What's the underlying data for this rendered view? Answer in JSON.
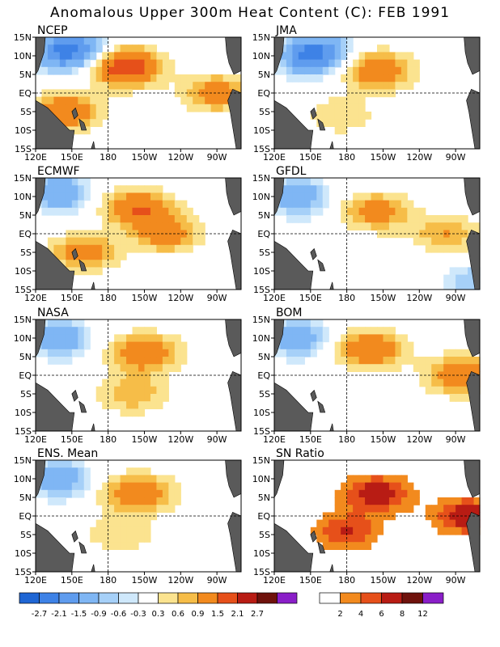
{
  "title": "Anomalous Upper 300m Heat Content (C): FEB 1991",
  "colors": {
    "land": "#5a5a5a",
    "anomaly": [
      "#1f66d4",
      "#3e82e6",
      "#5f9cee",
      "#7fb6f4",
      "#a6d0f8",
      "#cfe8fb",
      "#ffffff",
      "#fbe38f",
      "#f6bd48",
      "#f28a1e",
      "#e6501a",
      "#b81c14",
      "#6f120c",
      "#8a1ec8"
    ],
    "ratio": [
      "#ffffff",
      "#f28a1e",
      "#e6501a",
      "#b81c14",
      "#6f120c",
      "#8a1ec8"
    ]
  },
  "chart_data": [
    {
      "type": "heatmap",
      "title": "NCEP",
      "xticks": [
        "120E",
        "150E",
        "180",
        "150W",
        "120W",
        "90W"
      ],
      "yticks": [
        "15N",
        "10N",
        "5N",
        "EQ",
        "5S",
        "10S",
        "15S"
      ],
      "xlim": [
        120,
        290
      ],
      "ylim": [
        -15,
        15
      ],
      "warm": [
        {
          "lon": 195,
          "lat": 7,
          "value": 2.1
        },
        {
          "lon": 145,
          "lat": -5,
          "value": 1.5
        },
        {
          "lon": 270,
          "lat": 0,
          "value": 1.2
        }
      ],
      "cool": [
        {
          "lon": 140,
          "lat": 11,
          "value": -1.8
        },
        {
          "lon": 160,
          "lat": 12,
          "value": -1.2
        }
      ]
    },
    {
      "type": "heatmap",
      "title": "JMA",
      "xticks": [
        "120E",
        "150E",
        "180",
        "150W",
        "120W",
        "90W"
      ],
      "yticks": [
        "15N",
        "10N",
        "5N",
        "EQ",
        "5S",
        "10S",
        "15S"
      ],
      "xlim": [
        120,
        290
      ],
      "ylim": [
        -15,
        15
      ],
      "warm": [
        {
          "lon": 205,
          "lat": 6,
          "value": 1.5
        },
        {
          "lon": 175,
          "lat": -6,
          "value": 0.6
        }
      ],
      "cool": [
        {
          "lon": 145,
          "lat": 10,
          "value": -1.8
        },
        {
          "lon": 165,
          "lat": 11,
          "value": -1.2
        }
      ]
    },
    {
      "type": "heatmap",
      "title": "ECMWF",
      "xticks": [
        "120E",
        "150E",
        "180",
        "150W",
        "120W",
        "90W"
      ],
      "yticks": [
        "15N",
        "10N",
        "5N",
        "EQ",
        "5S",
        "10S",
        "15S"
      ],
      "xlim": [
        120,
        290
      ],
      "ylim": [
        -15,
        15
      ],
      "warm": [
        {
          "lon": 205,
          "lat": 7,
          "value": 1.5
        },
        {
          "lon": 228,
          "lat": 0,
          "value": 1.2
        },
        {
          "lon": 160,
          "lat": -5,
          "value": 1.2
        }
      ],
      "cool": [
        {
          "lon": 140,
          "lat": 11,
          "value": -1.5
        }
      ]
    },
    {
      "type": "heatmap",
      "title": "GFDL",
      "xticks": [
        "120E",
        "150E",
        "180",
        "150W",
        "120W",
        "90W"
      ],
      "yticks": [
        "15N",
        "10N",
        "5N",
        "EQ",
        "5S",
        "10S",
        "15S"
      ],
      "xlim": [
        120,
        290
      ],
      "ylim": [
        -15,
        15
      ],
      "warm": [
        {
          "lon": 205,
          "lat": 6,
          "value": 1.2
        },
        {
          "lon": 262,
          "lat": 0,
          "value": 0.9
        }
      ],
      "cool": [
        {
          "lon": 140,
          "lat": 10,
          "value": -1.5
        },
        {
          "lon": 285,
          "lat": -13,
          "value": -0.9
        }
      ]
    },
    {
      "type": "heatmap",
      "title": "NASA",
      "xticks": [
        "120E",
        "150E",
        "180",
        "150W",
        "120W",
        "90W"
      ],
      "yticks": [
        "15N",
        "10N",
        "5N",
        "EQ",
        "5S",
        "10S",
        "15S"
      ],
      "xlim": [
        120,
        290
      ],
      "ylim": [
        -15,
        15
      ],
      "warm": [
        {
          "lon": 210,
          "lat": 6,
          "value": 1.5
        },
        {
          "lon": 200,
          "lat": -5,
          "value": 0.9
        }
      ],
      "cool": [
        {
          "lon": 140,
          "lat": 10,
          "value": -1.5
        }
      ]
    },
    {
      "type": "heatmap",
      "title": "BOM",
      "xticks": [
        "120E",
        "150E",
        "180",
        "150W",
        "120W",
        "90W"
      ],
      "yticks": [
        "15N",
        "10N",
        "5N",
        "EQ",
        "5S",
        "10S",
        "15S"
      ],
      "xlim": [
        120,
        290
      ],
      "ylim": [
        -15,
        15
      ],
      "warm": [
        {
          "lon": 200,
          "lat": 7,
          "value": 1.5
        },
        {
          "lon": 275,
          "lat": 0,
          "value": 1.5
        }
      ],
      "cool": [
        {
          "lon": 140,
          "lat": 10,
          "value": -1.5
        }
      ]
    },
    {
      "type": "heatmap",
      "title": "ENS. Mean",
      "xticks": [
        "120E",
        "150E",
        "180",
        "150W",
        "120W",
        "90W"
      ],
      "yticks": [
        "15N",
        "10N",
        "5N",
        "EQ",
        "5S",
        "10S",
        "15S"
      ],
      "xlim": [
        120,
        290
      ],
      "ylim": [
        -15,
        15
      ],
      "warm": [
        {
          "lon": 205,
          "lat": 6,
          "value": 1.5
        },
        {
          "lon": 190,
          "lat": -5,
          "value": 0.6
        }
      ],
      "cool": [
        {
          "lon": 140,
          "lat": 10,
          "value": -1.5
        }
      ]
    },
    {
      "type": "heatmap",
      "title": "SN Ratio",
      "xticks": [
        "120E",
        "150E",
        "180",
        "150W",
        "120W",
        "90W"
      ],
      "yticks": [
        "15N",
        "10N",
        "5N",
        "EQ",
        "5S",
        "10S",
        "15S"
      ],
      "xlim": [
        120,
        290
      ],
      "ylim": [
        -15,
        15
      ],
      "warm": [
        {
          "lon": 205,
          "lat": 6,
          "value": 8
        },
        {
          "lon": 280,
          "lat": 0,
          "value": 8
        },
        {
          "lon": 180,
          "lat": -4,
          "value": 6
        }
      ],
      "cool": []
    }
  ],
  "colorbar_anomaly": {
    "labels": [
      "-2.7",
      "-2.1",
      "-1.5",
      "-0.9",
      "-0.6",
      "-0.3",
      "0.3",
      "0.6",
      "0.9",
      "1.5",
      "2.1",
      "2.7"
    ]
  },
  "colorbar_ratio": {
    "labels": [
      "2",
      "4",
      "6",
      "8",
      "12"
    ]
  }
}
